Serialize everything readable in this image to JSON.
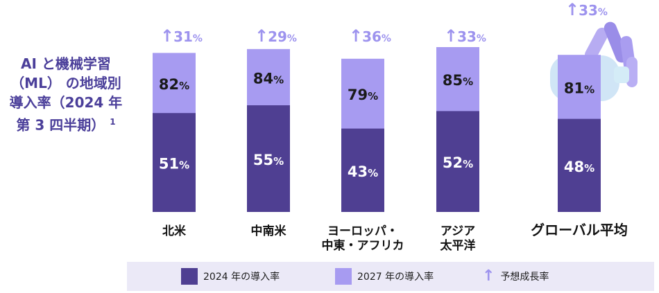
{
  "title": {
    "main": "AI と機械学習（ML） の地域別導入率（2024 年第 3 四半期）",
    "footnote": "1"
  },
  "colors": {
    "rate_2024": "#4f3f92",
    "rate_2027": "#a79bf1",
    "growth_arrow": "#9d93ee",
    "title": "#4b3f9a"
  },
  "icons": {
    "growth_arrow": "up-arrow-icon"
  },
  "chart_data": {
    "type": "bar",
    "categories": [
      "北米",
      "中南米",
      "ヨーロッパ・中東・アフリカ",
      "アジア太平洋",
      "グローバル平均"
    ],
    "category_lines": [
      [
        "北米"
      ],
      [
        "中南米"
      ],
      [
        "ヨーロッパ・",
        "中東・アフリカ"
      ],
      [
        "アジア",
        "太平洋"
      ],
      [
        "グローバル平均"
      ]
    ],
    "series": [
      {
        "name": "2024 年の導入率",
        "values": [
          51,
          55,
          43,
          52,
          48
        ]
      },
      {
        "name": "2027 年の導入率",
        "values": [
          82,
          84,
          79,
          85,
          81
        ]
      },
      {
        "name": "予想成長率",
        "values": [
          31,
          29,
          36,
          33,
          33
        ]
      }
    ],
    "unit": "%",
    "ylim": [
      0,
      100
    ],
    "grid": false,
    "legend_placement": "bottom",
    "highlighted_category": "グローバル平均",
    "highlight_decoration": "robot-hand-illustration"
  },
  "legend": {
    "items": [
      {
        "label": "2024 年の導入率",
        "kind": "swatch",
        "color": "#4f3f92"
      },
      {
        "label": "2027 年の導入率",
        "kind": "swatch",
        "color": "#a79bf1"
      },
      {
        "label": "予想成長率",
        "kind": "arrow",
        "color": "#9d93ee"
      }
    ]
  }
}
